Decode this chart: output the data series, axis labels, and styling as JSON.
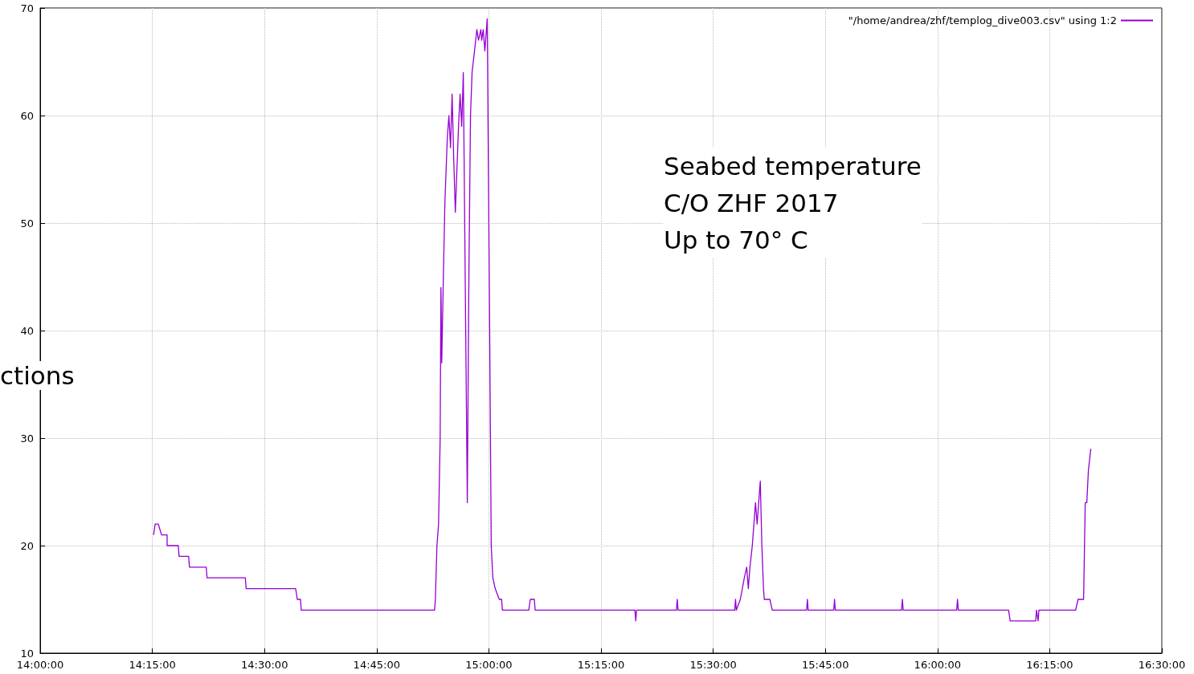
{
  "chart_data": {
    "type": "line",
    "x": [
      14.2527,
      14.2562,
      14.2633,
      14.2705,
      14.2829,
      14.2829,
      14.3078,
      14.3096,
      14.331,
      14.3327,
      14.3701,
      14.3719,
      14.4573,
      14.4591,
      14.5694,
      14.573,
      14.5801,
      14.5819,
      14.879,
      14.8808,
      14.8843,
      14.8879,
      14.8915,
      14.8932,
      14.895,
      14.8986,
      14.9021,
      14.9075,
      14.911,
      14.9146,
      14.9181,
      14.9217,
      14.9253,
      14.9324,
      14.9359,
      14.9395,
      14.9431,
      14.9484,
      14.952,
      14.9555,
      14.9591,
      14.9626,
      14.968,
      14.9733,
      14.9769,
      14.9822,
      14.984,
      14.9875,
      14.9911,
      14.9964,
      15.0018,
      15.0053,
      15.0089,
      15.0142,
      15.0231,
      15.0285,
      15.0302,
      15.089,
      15.0925,
      15.1014,
      15.1032,
      15.3256,
      15.3274,
      15.3292,
      15.4181,
      15.4199,
      15.4217,
      15.548,
      15.5498,
      15.5516,
      15.5605,
      15.5694,
      15.5747,
      15.5783,
      15.5819,
      15.5872,
      15.5943,
      15.5979,
      15.6014,
      15.605,
      15.6085,
      15.6121,
      15.6139,
      15.6263,
      15.6317,
      15.7082,
      15.71,
      15.7117,
      15.7687,
      15.7705,
      15.7722,
      15.9199,
      15.9217,
      15.9235,
      16.0427,
      16.0445,
      16.0463,
      16.1584,
      16.1619,
      16.2189,
      16.2206,
      16.2242,
      16.226,
      16.3078,
      16.3132,
      16.3256,
      16.3292,
      16.3327,
      16.3363,
      16.3416
    ],
    "series": [
      {
        "name": "\"/home/andrea/zhf/templog_dive003.csv\" using 1:2",
        "color": "#9400d3",
        "values": [
          21,
          22,
          22,
          21,
          21,
          20,
          20,
          19,
          19,
          18,
          18,
          17,
          17,
          16,
          16,
          15,
          15,
          14,
          14,
          15,
          20,
          22,
          30,
          44,
          37,
          45,
          52,
          58,
          60,
          57,
          62,
          56,
          51,
          59,
          62,
          59,
          64,
          40,
          24,
          45,
          60,
          64,
          66,
          68,
          67,
          68,
          67,
          68,
          66,
          69,
          40,
          20,
          17,
          16,
          15,
          15,
          14,
          14,
          15,
          15,
          14,
          14,
          13,
          14,
          14,
          15,
          14,
          14,
          15,
          14,
          15,
          17,
          18,
          16,
          18,
          20,
          24,
          22,
          24,
          26,
          20,
          16,
          15,
          15,
          14,
          14,
          15,
          14,
          14,
          15,
          14,
          14,
          15,
          14,
          14,
          15,
          14,
          14,
          13,
          13,
          14,
          13,
          14,
          14,
          15,
          15,
          24,
          24,
          27,
          29
        ]
      }
    ],
    "xlim": [
      14,
      16.5
    ],
    "xticks": [
      {
        "value": 14,
        "label": "14:00:00"
      },
      {
        "value": 14.25,
        "label": "14:15:00"
      },
      {
        "value": 14.5,
        "label": "14:30:00"
      },
      {
        "value": 14.75,
        "label": "14:45:00"
      },
      {
        "value": 15,
        "label": "15:00:00"
      },
      {
        "value": 15.25,
        "label": "15:15:00"
      },
      {
        "value": 15.5,
        "label": "15:30:00"
      },
      {
        "value": 15.75,
        "label": "15:45:00"
      },
      {
        "value": 16,
        "label": "16:00:00"
      },
      {
        "value": 16.25,
        "label": "16:15:00"
      },
      {
        "value": 16.5,
        "label": "16:30:00"
      }
    ],
    "ylim": [
      10,
      70
    ],
    "yticks": [
      10,
      20,
      30,
      40,
      50,
      60,
      70
    ],
    "grid": true,
    "legend": "top right",
    "marker": "none",
    "line_style": "solid",
    "annotations": [
      "Seabed temperature\nC/O ZHF 2017\nUp to 70° C",
      "ctions"
    ]
  }
}
